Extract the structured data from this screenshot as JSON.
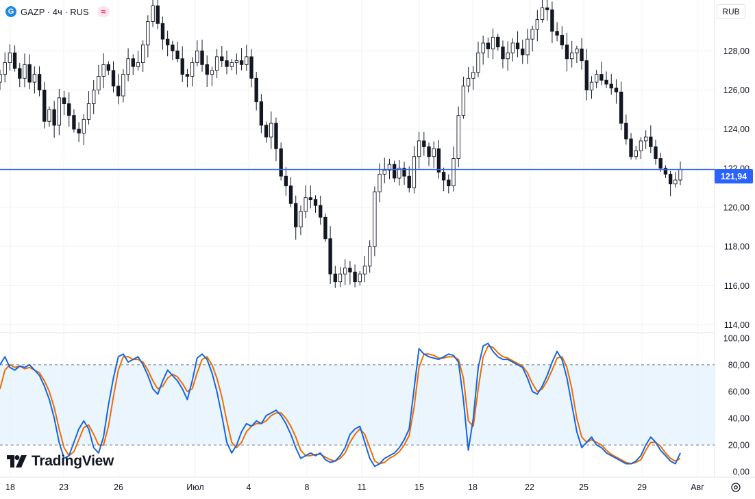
{
  "header": {
    "symbol_icon": "gazprom-flame-icon",
    "title": "GAZP · 4ч · RUS",
    "exchange_badge": "≈",
    "currency_button": "RUB"
  },
  "price_line": {
    "value": 121.94,
    "label": "121,94",
    "color": "#2962ff"
  },
  "brand": {
    "name": "TradingView"
  },
  "colors": {
    "up": "#131722",
    "down": "#131722",
    "grid": "#eef0f3",
    "stoch_k": "#1565e0",
    "stoch_d": "#ef6c00",
    "band_fill": "#e3f2fd"
  },
  "chart_data": [
    {
      "type": "candlestick",
      "symbol": "GAZP",
      "timeframe": "4ч",
      "ylim": [
        113.6,
        130.6
      ],
      "y_ticks": [
        "114,00",
        "116,00",
        "118,00",
        "120,00",
        "122,00",
        "124,00",
        "126,00",
        "128,00"
      ],
      "y_tick_values": [
        114,
        116,
        118,
        120,
        122,
        124,
        126,
        128
      ],
      "x_labels": [
        "18",
        "23",
        "26",
        "Июл",
        "4",
        "8",
        "11",
        "15",
        "18",
        "22",
        "25",
        "29",
        "Авг"
      ],
      "close": [
        126.8,
        127.4,
        127.9,
        127.1,
        126.6,
        127.3,
        126.4,
        126.8,
        126.0,
        124.4,
        125.0,
        124.2,
        125.6,
        125.3,
        124.7,
        124.0,
        123.8,
        124.5,
        125.3,
        126.0,
        126.7,
        127.3,
        127.0,
        126.2,
        125.7,
        126.8,
        127.6,
        127.2,
        127.4,
        128.3,
        129.5,
        130.3,
        129.4,
        128.6,
        128.3,
        128.0,
        127.6,
        126.8,
        126.7,
        127.4,
        128.0,
        127.3,
        126.8,
        127.0,
        127.7,
        127.5,
        127.2,
        127.4,
        127.5,
        127.3,
        127.7,
        126.6,
        125.4,
        124.2,
        123.6,
        124.3,
        123.0,
        121.6,
        121.1,
        120.2,
        119.0,
        119.8,
        120.5,
        120.4,
        120.1,
        119.5,
        118.4,
        116.6,
        116.2,
        116.6,
        116.9,
        116.7,
        116.2,
        116.6,
        117.0,
        118.0,
        120.8,
        121.7,
        121.9,
        122.2,
        121.5,
        122.0,
        121.6,
        121.0,
        122.6,
        123.4,
        123.1,
        122.6,
        123.0,
        121.8,
        121.4,
        121.1,
        122.5,
        124.7,
        126.2,
        126.6,
        126.9,
        127.9,
        128.4,
        128.1,
        128.7,
        128.2,
        127.6,
        127.9,
        128.4,
        128.1,
        127.8,
        128.6,
        129.1,
        129.6,
        130.2,
        130.1,
        129.0,
        128.8,
        128.3,
        127.6,
        127.9,
        128.1,
        127.5,
        126.0,
        126.4,
        126.8,
        126.5,
        126.3,
        126.1,
        125.9,
        124.3,
        123.5,
        122.6,
        122.9,
        123.4,
        123.6,
        123.1,
        122.5,
        122.0,
        121.7,
        121.2,
        121.4,
        121.94
      ]
    },
    {
      "type": "line",
      "indicator": "stochastic",
      "ylim": [
        -4,
        104
      ],
      "y_ticks": [
        "0,00",
        "20,00",
        "40,00",
        "60,00",
        "80,00",
        "100,00"
      ],
      "y_tick_values": [
        0,
        20,
        40,
        60,
        80,
        100
      ],
      "band": [
        20,
        80
      ],
      "series": [
        {
          "key": "k",
          "values": [
            80,
            86,
            78,
            76,
            79,
            78,
            80,
            76,
            72,
            64,
            54,
            40,
            22,
            10,
            12,
            22,
            32,
            38,
            32,
            18,
            14,
            26,
            50,
            70,
            86,
            88,
            82,
            84,
            86,
            80,
            72,
            62,
            58,
            68,
            76,
            72,
            68,
            62,
            54,
            68,
            85,
            88,
            84,
            74,
            60,
            42,
            22,
            14,
            20,
            30,
            36,
            34,
            38,
            36,
            42,
            44,
            46,
            42,
            36,
            28,
            18,
            10,
            12,
            14,
            12,
            14,
            9,
            7,
            8,
            12,
            18,
            28,
            32,
            34,
            22,
            10,
            4,
            6,
            10,
            12,
            14,
            18,
            24,
            32,
            62,
            92,
            88,
            86,
            85,
            84,
            86,
            88,
            87,
            82,
            54,
            16,
            40,
            78,
            94,
            96,
            90,
            86,
            84,
            84,
            82,
            80,
            78,
            70,
            60,
            58,
            64,
            72,
            82,
            90,
            84,
            70,
            50,
            30,
            18,
            22,
            26,
            20,
            18,
            14,
            12,
            10,
            8,
            6,
            6,
            8,
            12,
            20,
            26,
            22,
            16,
            12,
            8,
            6,
            14
          ]
        },
        {
          "key": "d",
          "values": [
            62,
            76,
            80,
            78,
            79,
            77,
            78,
            76,
            74,
            68,
            60,
            48,
            32,
            18,
            12,
            15,
            24,
            33,
            35,
            28,
            20,
            20,
            34,
            56,
            76,
            86,
            86,
            84,
            84,
            82,
            76,
            68,
            62,
            64,
            70,
            73,
            71,
            66,
            60,
            62,
            74,
            84,
            86,
            80,
            70,
            56,
            38,
            22,
            18,
            22,
            30,
            34,
            36,
            36,
            38,
            42,
            44,
            44,
            40,
            34,
            26,
            16,
            12,
            12,
            13,
            13,
            11,
            9,
            8,
            10,
            14,
            22,
            28,
            32,
            28,
            18,
            8,
            6,
            7,
            10,
            12,
            15,
            20,
            27,
            48,
            78,
            88,
            88,
            87,
            85,
            85,
            86,
            86,
            84,
            70,
            38,
            34,
            62,
            86,
            94,
            93,
            89,
            86,
            85,
            83,
            81,
            79,
            74,
            66,
            60,
            62,
            68,
            76,
            85,
            86,
            78,
            62,
            40,
            26,
            22,
            24,
            22,
            20,
            16,
            13,
            11,
            9,
            7,
            6,
            7,
            9,
            16,
            22,
            22,
            19,
            14,
            10,
            8,
            10
          ]
        }
      ]
    }
  ]
}
